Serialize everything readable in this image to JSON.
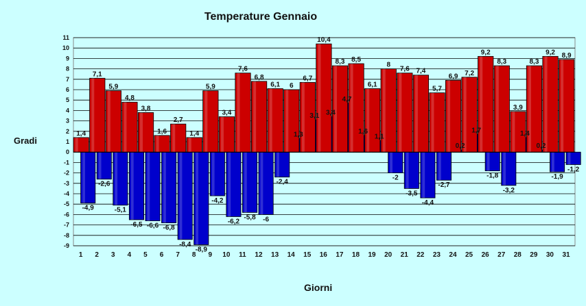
{
  "chart_data": {
    "type": "bar",
    "title": "Temperature Gennaio",
    "xlabel": "Giorni",
    "ylabel": "Gradi",
    "ylim": [
      -9,
      11
    ],
    "yticks": [
      "-9",
      "-8",
      "-7",
      "-6",
      "-5",
      "-4",
      "-3",
      "-2",
      "-1",
      "0",
      "1",
      "2",
      "3",
      "4",
      "5",
      "6",
      "7",
      "8",
      "9",
      "10",
      "11"
    ],
    "grid": true,
    "categories": [
      "1",
      "2",
      "3",
      "4",
      "5",
      "6",
      "7",
      "8",
      "9",
      "10",
      "11",
      "12",
      "13",
      "14",
      "15",
      "16",
      "17",
      "18",
      "19",
      "20",
      "21",
      "22",
      "23",
      "24",
      "25",
      "26",
      "27",
      "28",
      "29",
      "30",
      "31"
    ],
    "series": [
      {
        "color": "#cc0000",
        "values": [
          1.4,
          7.1,
          5.9,
          4.8,
          3.8,
          1.6,
          2.7,
          1.4,
          5.9,
          3.4,
          7.6,
          6.8,
          6.1,
          6,
          6.7,
          10.4,
          8.3,
          8.5,
          6.1,
          8,
          7.6,
          7.4,
          5.7,
          6.9,
          7.2,
          9.2,
          8.3,
          3.9,
          8.3,
          9.2,
          8.9
        ],
        "labels": [
          "1,4",
          "7,1",
          "5,9",
          "4,8",
          "3,8",
          "1,6",
          "2,7",
          "1,4",
          "5,9",
          "3,4",
          "7,6",
          "6,8",
          "6,1",
          "6",
          "6,7",
          "10,4",
          "8,3",
          "8,5",
          "6,1",
          "8",
          "7,6",
          "7,4",
          "5,7",
          "6,9",
          "7,2",
          "9,2",
          "8,3",
          "3,9",
          "8,3",
          "9,2",
          "8,9"
        ]
      },
      {
        "color": "#0000cc",
        "values": [
          -4.9,
          -2.6,
          -5.1,
          -6.5,
          -6.6,
          -6.8,
          -8.4,
          -8.9,
          -4.2,
          -6.2,
          -5.8,
          -6,
          -2.4,
          1.3,
          3.1,
          3.4,
          4.7,
          1.6,
          1.1,
          -2,
          -3.5,
          -4.4,
          -2.7,
          0.2,
          1.7,
          -1.8,
          -3.2,
          1.4,
          0.2,
          -1.9,
          -1.2
        ],
        "labels": [
          "-4,9",
          "-2,6",
          "-5,1",
          "-6,5",
          "-6,6",
          "-6,8",
          "-8,4",
          "-8,9",
          "-4,2",
          "-6,2",
          "-5,8",
          "-6",
          "-2,4",
          "1,3",
          "3,1",
          "3,4",
          "4,7",
          "1,6",
          "1,1",
          "-2",
          "-3,5",
          "-4,4",
          "-2,7",
          "0,2",
          "1,7",
          "-1,8",
          "-3,2",
          "1,4",
          "0,2",
          "-1,9",
          "-1,2"
        ]
      }
    ]
  }
}
